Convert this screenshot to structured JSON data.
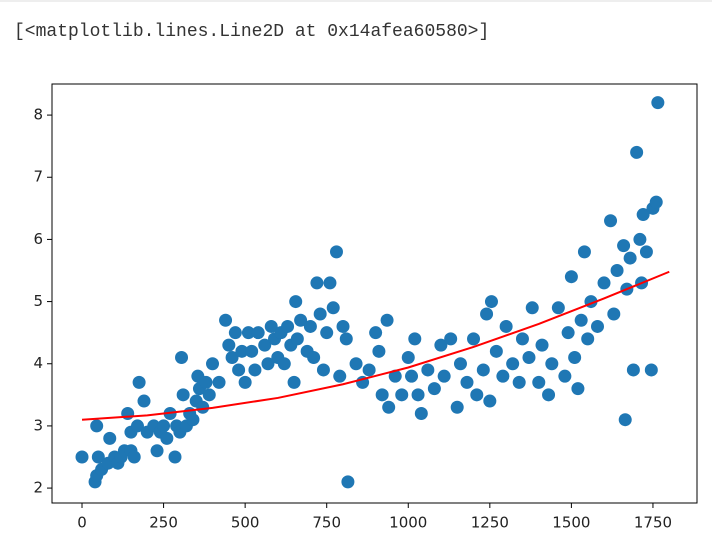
{
  "output_text": "[<matplotlib.lines.Line2D at 0x14afea60580>]",
  "chart_data": {
    "type": "scatter",
    "xlim": [
      -92,
      1885
    ],
    "ylim": [
      1.76,
      8.5
    ],
    "xticks": [
      0,
      250,
      500,
      750,
      1000,
      1250,
      1500,
      1750
    ],
    "yticks": [
      2,
      3,
      4,
      5,
      6,
      7,
      8
    ],
    "grid": false,
    "series": [
      {
        "type": "scatter",
        "color": "#1f77b4",
        "x": [
          0,
          40,
          45,
          45,
          50,
          60,
          80,
          85,
          100,
          110,
          120,
          130,
          140,
          150,
          150,
          160,
          170,
          175,
          190,
          200,
          220,
          230,
          240,
          250,
          260,
          270,
          285,
          290,
          300,
          305,
          310,
          320,
          330,
          340,
          350,
          355,
          360,
          370,
          380,
          390,
          400,
          420,
          440,
          450,
          460,
          470,
          480,
          490,
          500,
          510,
          520,
          530,
          540,
          560,
          570,
          580,
          590,
          600,
          610,
          620,
          630,
          640,
          650,
          655,
          660,
          670,
          690,
          700,
          710,
          720,
          730,
          740,
          750,
          760,
          770,
          780,
          790,
          800,
          810,
          815,
          840,
          860,
          880,
          900,
          910,
          920,
          935,
          940,
          960,
          980,
          1000,
          1010,
          1020,
          1030,
          1040,
          1060,
          1080,
          1100,
          1110,
          1130,
          1150,
          1160,
          1180,
          1200,
          1210,
          1230,
          1240,
          1250,
          1255,
          1270,
          1290,
          1300,
          1320,
          1340,
          1350,
          1370,
          1380,
          1400,
          1410,
          1430,
          1440,
          1460,
          1480,
          1490,
          1500,
          1510,
          1520,
          1530,
          1540,
          1550,
          1560,
          1580,
          1600,
          1620,
          1630,
          1640,
          1660,
          1665,
          1670,
          1680,
          1690,
          1700,
          1710,
          1715,
          1720,
          1730,
          1745,
          1750,
          1760,
          1765
        ],
        "values": [
          2.5,
          2.1,
          2.2,
          3.0,
          2.5,
          2.3,
          2.4,
          2.8,
          2.5,
          2.4,
          2.5,
          2.6,
          3.2,
          2.6,
          2.9,
          2.5,
          3.0,
          3.7,
          3.4,
          2.9,
          3.0,
          2.6,
          2.9,
          3.0,
          2.8,
          3.2,
          2.5,
          3.0,
          2.9,
          4.1,
          3.5,
          3.0,
          3.2,
          3.1,
          3.4,
          3.8,
          3.6,
          3.3,
          3.7,
          3.5,
          4.0,
          3.7,
          4.7,
          4.3,
          4.1,
          4.5,
          3.9,
          4.2,
          3.7,
          4.5,
          4.2,
          3.9,
          4.5,
          4.3,
          4.0,
          4.6,
          4.4,
          4.1,
          4.5,
          4.0,
          4.6,
          4.3,
          3.7,
          5.0,
          4.4,
          4.7,
          4.2,
          4.6,
          4.1,
          5.3,
          4.8,
          3.9,
          4.5,
          5.3,
          4.9,
          5.8,
          3.8,
          4.6,
          4.4,
          2.1,
          4.0,
          3.7,
          3.9,
          4.5,
          4.2,
          3.5,
          4.7,
          3.3,
          3.8,
          3.5,
          4.1,
          3.8,
          4.4,
          3.5,
          3.2,
          3.9,
          3.6,
          4.3,
          3.8,
          4.4,
          3.3,
          4.0,
          3.7,
          4.4,
          3.5,
          3.9,
          4.8,
          3.4,
          5.0,
          4.2,
          3.8,
          4.6,
          4.0,
          3.7,
          4.4,
          4.1,
          4.9,
          3.7,
          4.3,
          3.5,
          4.0,
          4.9,
          3.8,
          4.5,
          5.4,
          4.1,
          3.6,
          4.7,
          5.8,
          4.4,
          5.0,
          4.6,
          5.3,
          6.3,
          4.8,
          5.5,
          5.9,
          3.1,
          5.2,
          5.7,
          3.9,
          7.4,
          6.0,
          5.3,
          6.4,
          5.8,
          3.9,
          6.5,
          6.6,
          8.2
        ]
      },
      {
        "type": "line",
        "color": "#ff0000",
        "x": [
          0,
          200,
          400,
          600,
          800,
          1000,
          1200,
          1400,
          1600,
          1800
        ],
        "values": [
          3.1,
          3.17,
          3.29,
          3.45,
          3.67,
          3.94,
          4.27,
          4.64,
          5.05,
          5.48
        ]
      }
    ]
  }
}
